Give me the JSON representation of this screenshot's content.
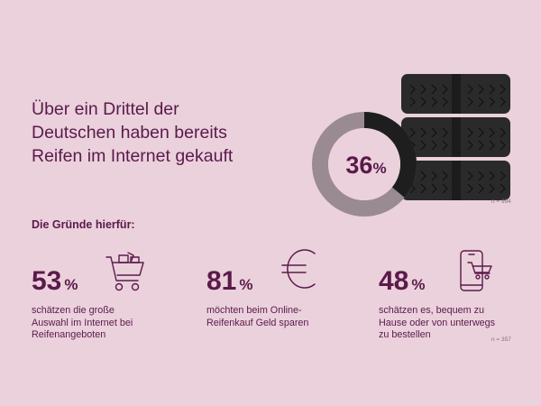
{
  "headline": {
    "lines": [
      "Über ein Drittel der",
      "Deutschen haben bereits",
      "Reifen im Internet gekauft"
    ]
  },
  "main_stat": {
    "value": "36",
    "unit": "%",
    "share": 0.36
  },
  "sample_note_1": "n = 994",
  "reasons_title": "Die Gründe hierfür:",
  "stats": [
    {
      "value": "53",
      "unit": "%",
      "lines": [
        "schätzen die große",
        "Auswahl im Internet bei",
        "Reifenangeboten"
      ],
      "icon": "shopping-cart-icon"
    },
    {
      "value": "81",
      "unit": "%",
      "lines": [
        "möchten beim Online-",
        "Reifenkauf Geld sparen"
      ],
      "icon": "euro-icon"
    },
    {
      "value": "48",
      "unit": "%",
      "lines": [
        "schätzen es, bequem zu",
        "Hause oder von unterwegs",
        "zu bestellen"
      ],
      "icon": "smartphone-cart-icon"
    }
  ],
  "sample_note_2": "n = 357",
  "colors": {
    "background": "#ead1dc",
    "accent": "#5b1a4a",
    "donut_fill": "#1e1e1e",
    "donut_rest": "#9a8a92",
    "tire": "#2a2a2a"
  }
}
